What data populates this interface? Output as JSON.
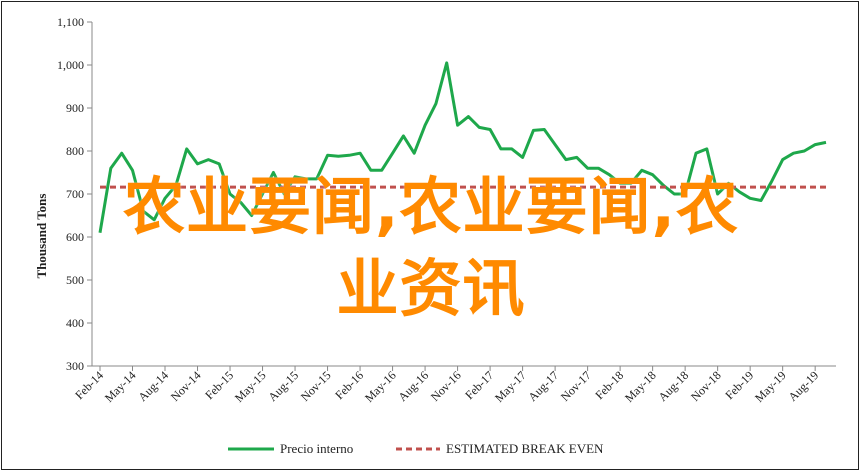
{
  "chart_data": {
    "type": "line",
    "ylabel": "Thousand Tons",
    "ylim": [
      700,
      1100
    ],
    "yticks": [
      "700",
      "800",
      "900",
      "1,000",
      "1,100"
    ],
    "ytick_values": [
      700,
      800,
      900,
      1000,
      1100
    ],
    "extra_ytick_labels": [
      "600",
      "500",
      "400",
      "300"
    ],
    "extra_ytick_values": [
      600,
      500,
      400,
      300
    ],
    "xtick_labels": [
      "Feb-14",
      "May-14",
      "Aug-14",
      "Nov-14",
      "Feb-15",
      "May-15",
      "Aug-15",
      "Nov-15",
      "Feb-16",
      "May-16",
      "Aug-16",
      "Nov-16",
      "Feb-17",
      "May-17",
      "Aug-17",
      "Nov-17",
      "Feb-18",
      "May-18",
      "Aug-18",
      "Nov-18",
      "Feb-19",
      "May-19",
      "Aug-19"
    ],
    "series": [
      {
        "name": "Precio interno",
        "color": "#1ea84b",
        "values": [
          610,
          760,
          795,
          755,
          660,
          640,
          690,
          720,
          805,
          770,
          780,
          770,
          700,
          680,
          650,
          700,
          750,
          700,
          740,
          735,
          735,
          790,
          788,
          790,
          795,
          755,
          755,
          795,
          835,
          795,
          860,
          910,
          1005,
          860,
          880,
          855,
          850,
          805,
          805,
          785,
          848,
          850,
          815,
          780,
          785,
          760,
          760,
          745,
          725,
          725,
          755,
          745,
          720,
          700,
          700,
          795,
          805,
          700,
          725,
          705,
          690,
          685,
          730,
          780,
          795,
          800,
          815,
          820
        ]
      },
      {
        "name": "ESTIMATED BREAK EVEN",
        "color": "#c0504d",
        "constant": 716
      }
    ],
    "legend_position": "bottom",
    "grid": false
  },
  "overlay": {
    "line1": "农业要闻,农业要闻,农",
    "line2": "业资讯"
  }
}
